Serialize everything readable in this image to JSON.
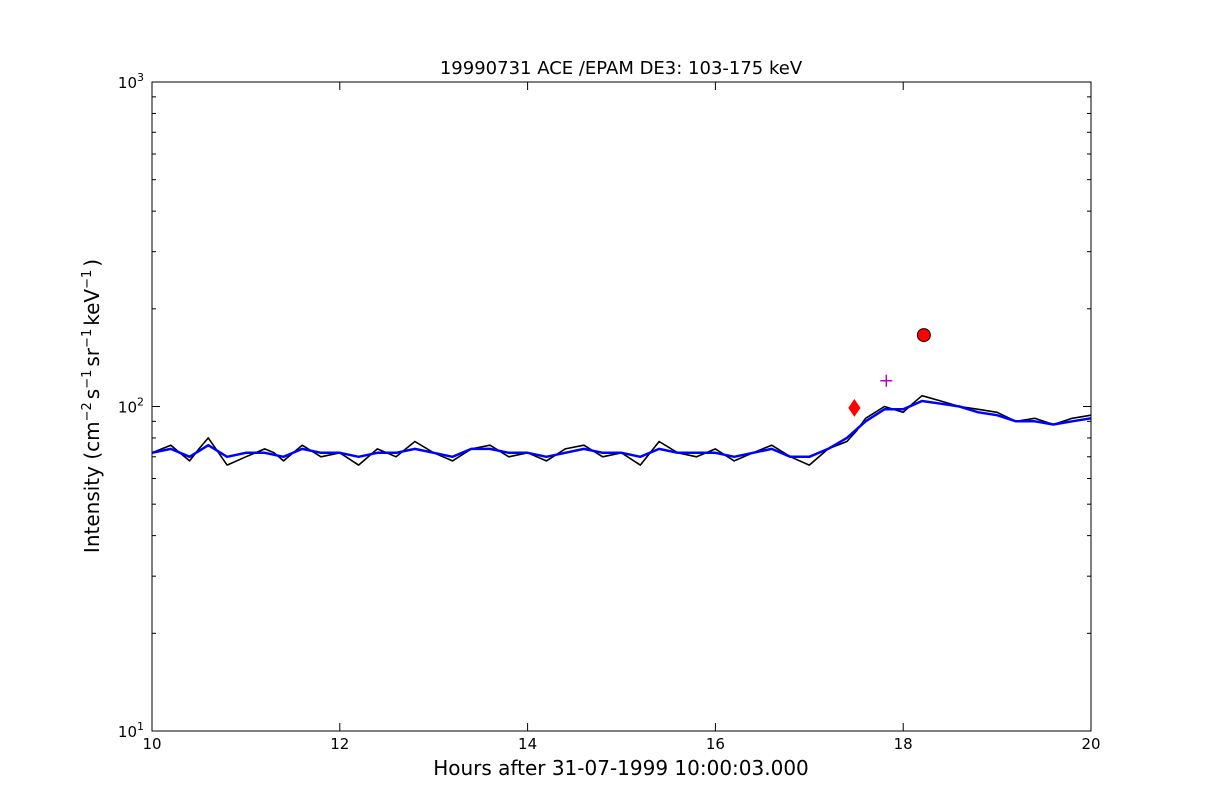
{
  "chart_data": {
    "type": "line",
    "title": "19990731 ACE /EPAM DE3: 103-175 keV",
    "xlabel": "Hours after 31-07-1999 10:00:03.000",
    "ylabel_parts": {
      "prefix": "Intensity (cm",
      "exp1": "−2",
      "s": "s",
      "exp2": "−1",
      "sr": "sr",
      "exp3": "−1",
      "kev": "keV",
      "exp4": "−1",
      "suffix": ")"
    },
    "xlim": [
      10,
      20
    ],
    "ylim": [
      10,
      1000
    ],
    "yscale": "log",
    "grid": false,
    "x_ticks": [
      "10",
      "12",
      "14",
      "16",
      "18",
      "20"
    ],
    "y_ticks": [
      {
        "base": "10",
        "exp": "1"
      },
      {
        "base": "10",
        "exp": "2"
      },
      {
        "base": "10",
        "exp": "3"
      }
    ],
    "colors": {
      "raw": "#000000",
      "smoothed": "#0000ff",
      "marker_diamond": "#ff0000",
      "marker_plus": "#bf00bf",
      "marker_circle": "#ff0000"
    },
    "series": [
      {
        "key": "raw",
        "x": [
          10.0,
          10.2,
          10.4,
          10.5,
          10.6,
          10.8,
          11.0,
          11.2,
          11.3,
          11.4,
          11.6,
          11.8,
          12.0,
          12.2,
          12.4,
          12.6,
          12.8,
          13.0,
          13.2,
          13.4,
          13.6,
          13.8,
          14.0,
          14.2,
          14.4,
          14.6,
          14.8,
          15.0,
          15.2,
          15.4,
          15.6,
          15.8,
          16.0,
          16.2,
          16.4,
          16.6,
          16.8,
          17.0,
          17.2,
          17.4,
          17.5,
          17.6,
          17.8,
          18.0,
          18.1,
          18.2,
          18.4,
          18.6,
          18.8,
          19.0,
          19.2,
          19.4,
          19.6,
          19.8,
          20.0
        ],
        "y": [
          72,
          76,
          68,
          74,
          80,
          66,
          70,
          74,
          72,
          68,
          76,
          70,
          72,
          66,
          74,
          70,
          78,
          72,
          68,
          74,
          76,
          70,
          72,
          68,
          74,
          76,
          70,
          72,
          66,
          78,
          72,
          70,
          74,
          68,
          72,
          76,
          70,
          66,
          74,
          78,
          84,
          92,
          100,
          96,
          102,
          108,
          104,
          100,
          98,
          96,
          90,
          92,
          88,
          92,
          94
        ]
      },
      {
        "key": "smoothed",
        "x": [
          10.0,
          10.2,
          10.4,
          10.6,
          10.8,
          11.0,
          11.2,
          11.4,
          11.6,
          11.8,
          12.0,
          12.2,
          12.4,
          12.6,
          12.8,
          13.0,
          13.2,
          13.4,
          13.6,
          13.8,
          14.0,
          14.2,
          14.4,
          14.6,
          14.8,
          15.0,
          15.2,
          15.4,
          15.6,
          15.8,
          16.0,
          16.2,
          16.4,
          16.6,
          16.8,
          17.0,
          17.2,
          17.4,
          17.6,
          17.8,
          18.0,
          18.2,
          18.4,
          18.6,
          18.8,
          19.0,
          19.2,
          19.4,
          19.6,
          19.8,
          20.0
        ],
        "y": [
          72,
          74,
          70,
          76,
          70,
          72,
          72,
          70,
          74,
          72,
          72,
          70,
          72,
          72,
          74,
          72,
          70,
          74,
          74,
          72,
          72,
          70,
          72,
          74,
          72,
          72,
          70,
          74,
          72,
          72,
          72,
          70,
          72,
          74,
          70,
          70,
          74,
          80,
          90,
          98,
          98,
          104,
          102,
          100,
          96,
          94,
          90,
          90,
          88,
          90,
          92
        ]
      }
    ],
    "markers": [
      {
        "shape": "diamond",
        "x": 17.48,
        "y": 99
      },
      {
        "shape": "plus",
        "x": 17.82,
        "y": 120
      },
      {
        "shape": "circle",
        "x": 18.22,
        "y": 166
      }
    ]
  }
}
